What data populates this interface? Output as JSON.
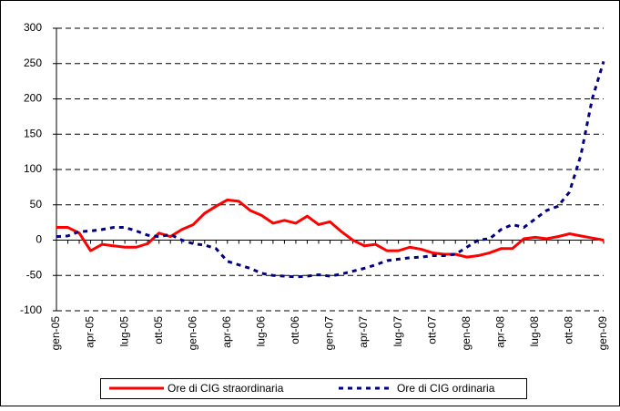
{
  "chart_data": {
    "type": "line",
    "categories": [
      "gen-05",
      null,
      null,
      "apr-05",
      null,
      null,
      "lug-05",
      null,
      null,
      "ott-05",
      null,
      null,
      "gen-06",
      null,
      null,
      "apr-06",
      null,
      null,
      "lug-06",
      null,
      null,
      "ott-06",
      null,
      null,
      "gen-07",
      null,
      null,
      "apr-07",
      null,
      null,
      "lug-07",
      null,
      null,
      "ott-07",
      null,
      null,
      "gen-08",
      null,
      null,
      "apr-08",
      null,
      null,
      "lug-08",
      null,
      null,
      "ott-08",
      null,
      null,
      "gen-09"
    ],
    "series": [
      {
        "name": "Ore di CIG straordinaria",
        "color": "#ff0000",
        "dash": "solid",
        "values": [
          18,
          18,
          10,
          -15,
          -6,
          -8,
          -10,
          -10,
          -5,
          10,
          5,
          15,
          22,
          38,
          48,
          57,
          55,
          42,
          35,
          24,
          28,
          24,
          34,
          22,
          26,
          12,
          0,
          -8,
          -6,
          -15,
          -15,
          -10,
          -13,
          -18,
          -20,
          -20,
          -24,
          -22,
          -18,
          -12,
          -12,
          2,
          4,
          2,
          5,
          9,
          6,
          3,
          0
        ]
      },
      {
        "name": "Ore di CIG ordinaria",
        "color": "#000080",
        "dash": "dashed",
        "values": [
          5,
          6,
          12,
          13,
          15,
          18,
          18,
          13,
          7,
          5,
          8,
          0,
          -5,
          -7,
          -12,
          -30,
          -35,
          -40,
          -47,
          -50,
          -51,
          -52,
          -51,
          -49,
          -51,
          -48,
          -44,
          -40,
          -35,
          -29,
          -27,
          -25,
          -24,
          -22,
          -22,
          -20,
          -10,
          0,
          2,
          15,
          22,
          18,
          30,
          42,
          48,
          68,
          120,
          200,
          253
        ]
      }
    ],
    "ylim": [
      -100,
      300
    ],
    "yticks": [
      -100,
      -50,
      0,
      50,
      100,
      150,
      200,
      250,
      300
    ],
    "grid": true
  }
}
